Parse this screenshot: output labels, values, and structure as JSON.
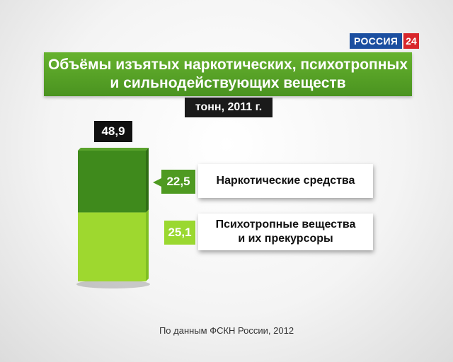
{
  "channel": {
    "name": "РОССИЯ",
    "number": "24"
  },
  "title": {
    "line1": "Объёмы изъятых наркотических, психотропных",
    "line2": "и сильнодействующих веществ"
  },
  "unit": "тонн, 2011 г.",
  "source": "По данным ФСКН России, 2012",
  "colors": {
    "title_bg": "#55a326",
    "segment_top": "#3f8a1c",
    "segment_bottom": "#9ed82f",
    "logo_blue": "#1b4fa0",
    "logo_red": "#d8262b"
  },
  "chart_data": {
    "type": "bar",
    "title": "Объёмы изъятых наркотических, психотропных и сильнодействующих веществ",
    "stacked": true,
    "categories": [
      "2011"
    ],
    "total": 48.9,
    "total_label": "48,9",
    "series": [
      {
        "name": "Психотропные вещества и их прекурсоры",
        "values": [
          25.1
        ],
        "label": "25,1"
      },
      {
        "name": "Наркотические средства",
        "values": [
          22.5
        ],
        "label": "22,5"
      }
    ]
  }
}
